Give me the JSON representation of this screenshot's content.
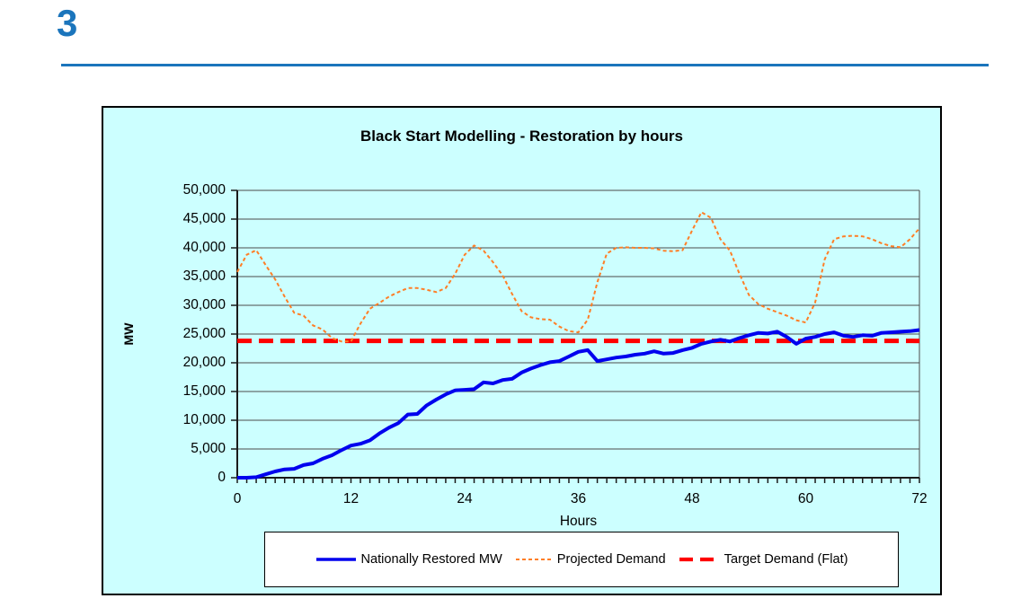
{
  "page": {
    "slide_number": "3"
  },
  "chart": {
    "title": "Black Start Modelling - Restoration by hours",
    "x_axis": {
      "title": "Hours",
      "min": 0,
      "max": 72,
      "minor_tick_every": 1,
      "tick_labels": [
        "0",
        "12",
        "24",
        "36",
        "48",
        "60",
        "72"
      ],
      "tick_values": [
        0,
        12,
        24,
        36,
        48,
        60,
        72
      ]
    },
    "y_axis": {
      "title": "MW",
      "min": 0,
      "max": 50000,
      "tick_step": 5000,
      "tick_labels": [
        "50,000",
        "45,000",
        "40,000",
        "35,000",
        "30,000",
        "25,000",
        "20,000",
        "15,000",
        "10,000",
        "5,000",
        "0"
      ],
      "tick_values": [
        50000,
        45000,
        40000,
        35000,
        30000,
        25000,
        20000,
        15000,
        10000,
        5000,
        0
      ]
    },
    "colors": {
      "accent_blue": "#1B75BC",
      "chart_background": "#CCFFFF",
      "plot_background": "#FFFFFF",
      "gridline": "#4B4B4B",
      "axis": "#1A1A1A",
      "restored_line": "#0000EE",
      "projected_line": "#FF7E26",
      "target_line": "#FE0000"
    }
  },
  "chart_data": {
    "type": "line",
    "title": "Black Start Modelling - Restoration by hours",
    "xlabel": "Hours",
    "ylabel": "MW",
    "xlim": [
      0,
      72
    ],
    "ylim": [
      0,
      50000
    ],
    "grid": true,
    "legend_position": "bottom",
    "x": [
      0,
      1,
      2,
      3,
      4,
      5,
      6,
      7,
      8,
      9,
      10,
      11,
      12,
      13,
      14,
      15,
      16,
      17,
      18,
      19,
      20,
      21,
      22,
      23,
      24,
      25,
      26,
      27,
      28,
      29,
      30,
      31,
      32,
      33,
      34,
      35,
      36,
      37,
      38,
      39,
      40,
      41,
      42,
      43,
      44,
      45,
      46,
      47,
      48,
      49,
      50,
      51,
      52,
      53,
      54,
      55,
      56,
      57,
      58,
      59,
      60,
      61,
      62,
      63,
      64,
      65,
      66,
      67,
      68,
      69,
      70,
      71,
      72
    ],
    "series": [
      {
        "name": "Nationally Restored MW",
        "color": "#0000EE",
        "style": "solid",
        "width": 4,
        "values": [
          0,
          0,
          100,
          600,
          1100,
          1450,
          1550,
          2200,
          2500,
          3300,
          3900,
          4800,
          5600,
          5900,
          6500,
          7700,
          8700,
          9500,
          11000,
          11100,
          12600,
          13600,
          14500,
          15200,
          15300,
          15400,
          16600,
          16400,
          17000,
          17200,
          18300,
          19000,
          19600,
          20100,
          20300,
          21100,
          21900,
          22200,
          20300,
          20600,
          20900,
          21100,
          21400,
          21600,
          22000,
          21600,
          21700,
          22200,
          22600,
          23300,
          23700,
          24000,
          23700,
          24300,
          24800,
          25200,
          25100,
          25400,
          24500,
          23300,
          24200,
          24500,
          25000,
          25300,
          24700,
          24500,
          24800,
          24700,
          25200,
          25300,
          25400,
          25500,
          25700
        ]
      },
      {
        "name": "Projected Demand",
        "color": "#FF7E26",
        "style": "dashed",
        "width": 2,
        "values": [
          35800,
          38800,
          39600,
          37000,
          34500,
          31500,
          28700,
          28200,
          26500,
          25800,
          24300,
          23700,
          23700,
          26800,
          29400,
          30400,
          31500,
          32300,
          33000,
          33000,
          32700,
          32300,
          33000,
          35500,
          38800,
          40400,
          39500,
          37500,
          35200,
          32000,
          29000,
          27900,
          27600,
          27500,
          26300,
          25500,
          25300,
          27500,
          34000,
          39000,
          40000,
          40100,
          40000,
          40000,
          39900,
          39500,
          39400,
          39600,
          43000,
          46200,
          45200,
          41500,
          39500,
          35500,
          31800,
          30200,
          29400,
          28800,
          28200,
          27400,
          27000,
          30500,
          38000,
          41500,
          42000,
          42100,
          42000,
          41500,
          40800,
          40300,
          40100,
          41500,
          43400
        ]
      },
      {
        "name": "Target Demand (Flat)",
        "color": "#FE0000",
        "style": "long-dash",
        "width": 5,
        "constant_value": 23800
      }
    ]
  }
}
